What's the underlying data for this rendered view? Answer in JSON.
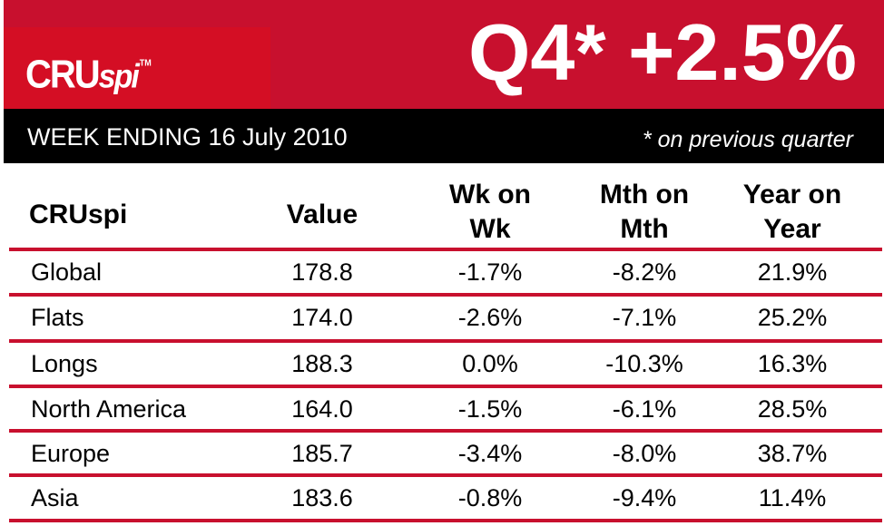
{
  "header": {
    "logo_main": "CRU",
    "logo_accent": "spi",
    "logo_tm": "TM",
    "headline": "Q4* +2.5%",
    "week_ending": "WEEK ENDING 16 July 2010",
    "footnote": "* on previous quarter"
  },
  "table": {
    "columns": [
      "CRUspi",
      "Value",
      "Wk on Wk",
      "Mth on Mth",
      "Year on Year"
    ],
    "column_lines": {
      "wk": [
        "Wk on",
        "Wk"
      ],
      "mth": [
        "Mth on",
        "Mth"
      ],
      "yr": [
        "Year on",
        "Year"
      ]
    },
    "rows": [
      {
        "name": "Global",
        "value": "178.8",
        "wk": "-1.7%",
        "mth": "-8.2%",
        "yr": "21.9%"
      },
      {
        "name": "Flats",
        "value": "174.0",
        "wk": "-2.6%",
        "mth": "-7.1%",
        "yr": "25.2%"
      },
      {
        "name": "Longs",
        "value": "188.3",
        "wk": "0.0%",
        "mth": "-10.3%",
        "yr": "16.3%"
      },
      {
        "name": "North America",
        "value": "164.0",
        "wk": "-1.5%",
        "mth": "-6.1%",
        "yr": "28.5%"
      },
      {
        "name": "Europe",
        "value": "185.7",
        "wk": "-3.4%",
        "mth": "-8.0%",
        "yr": "38.7%"
      },
      {
        "name": "Asia",
        "value": "183.6",
        "wk": "-0.8%",
        "mth": "-9.4%",
        "yr": "11.4%"
      }
    ]
  },
  "colors": {
    "brand_red": "#c8102e",
    "header_black": "#000000",
    "text": "#000000"
  }
}
